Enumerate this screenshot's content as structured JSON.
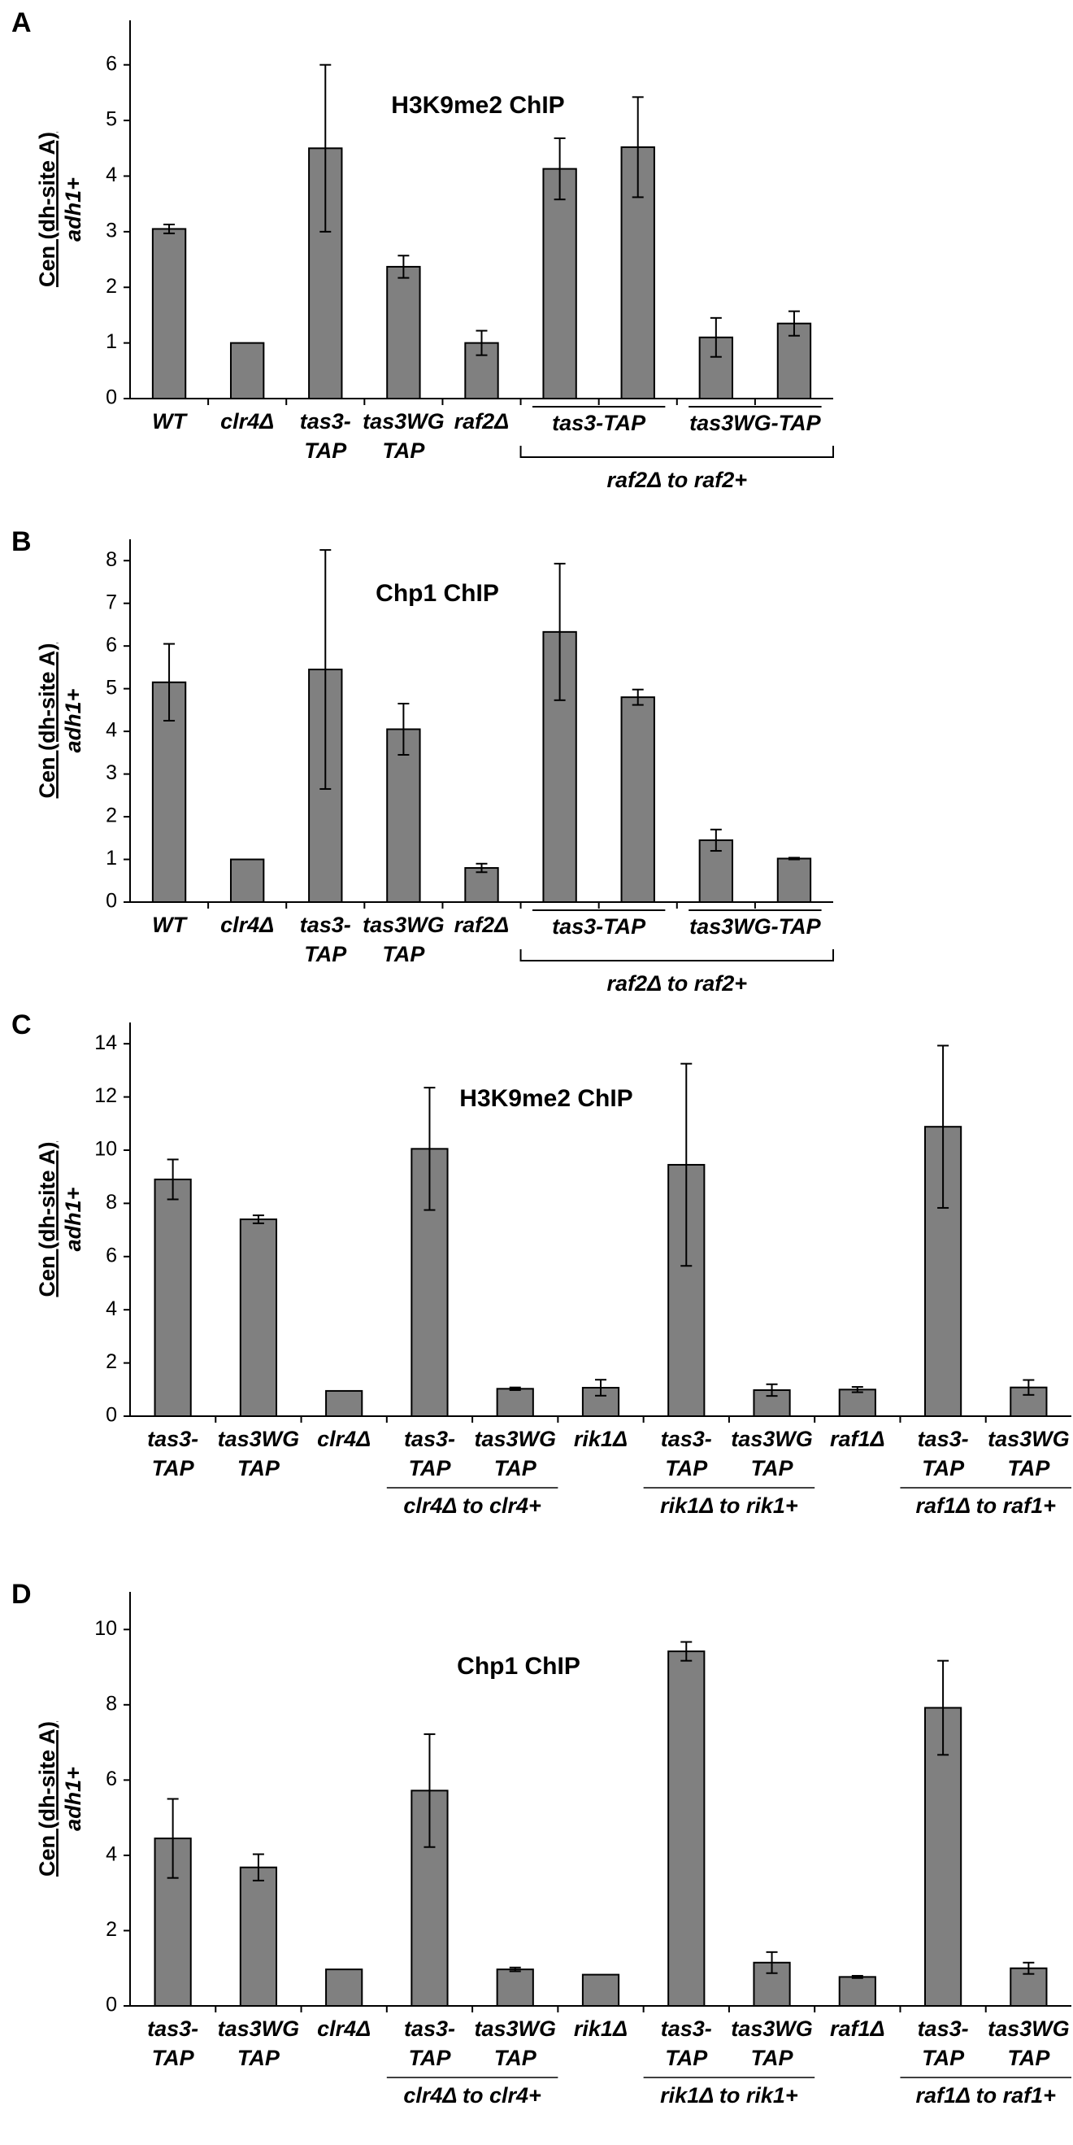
{
  "chart_data": [
    {
      "type": "bar",
      "panel": "A",
      "title": "H3K9me2 ChIP",
      "ylabel": "Cen (dh-site A)",
      "ylabel2": "adh1+",
      "color": "#808080",
      "categories": [
        "WT",
        "clr4Δ",
        "tas3- TAP",
        "tas3WG TAP",
        "raf2Δ",
        null,
        null,
        null,
        null
      ],
      "values": [
        3.05,
        1.0,
        4.5,
        2.37,
        1.0,
        4.13,
        4.52,
        1.1,
        1.35
      ],
      "errors": [
        0.08,
        null,
        1.5,
        0.2,
        0.22,
        0.55,
        0.9,
        0.35,
        0.22
      ],
      "ylim": [
        0,
        6.8
      ],
      "yticks": [
        0,
        1,
        2,
        3,
        4,
        5,
        6
      ],
      "groups": [
        {
          "label": "tas3-TAP",
          "from": 5,
          "to": 6
        },
        {
          "label": "tas3WG-TAP",
          "from": 7,
          "to": 8
        }
      ],
      "bracket": {
        "label": "raf2Δ to raf2+",
        "from": 5,
        "to": 8
      }
    },
    {
      "type": "bar",
      "panel": "B",
      "title": "Chp1 ChIP",
      "ylabel": "Cen (dh-site A)",
      "ylabel2": "adh1+",
      "color": "#808080",
      "categories": [
        "WT",
        "clr4Δ",
        "tas3- TAP",
        "tas3WG TAP",
        "raf2Δ",
        null,
        null,
        null,
        null
      ],
      "values": [
        5.15,
        1.0,
        5.45,
        4.05,
        0.8,
        6.33,
        4.8,
        1.45,
        1.02
      ],
      "errors": [
        0.9,
        null,
        2.8,
        0.6,
        0.1,
        1.6,
        0.18,
        0.25,
        0.02
      ],
      "ylim": [
        0,
        8.5
      ],
      "yticks": [
        0,
        1,
        2,
        3,
        4,
        5,
        6,
        7,
        8
      ],
      "groups": [
        {
          "label": "tas3-TAP",
          "from": 5,
          "to": 6
        },
        {
          "label": "tas3WG-TAP",
          "from": 7,
          "to": 8
        }
      ],
      "bracket": {
        "label": "raf2Δ to raf2+",
        "from": 5,
        "to": 8
      }
    },
    {
      "type": "bar",
      "panel": "C",
      "title": "H3K9me2 ChIP",
      "ylabel": "Cen (dh-site A)",
      "ylabel2": "adh1+",
      "color": "#808080",
      "categories": [
        "tas3- TAP",
        "tas3WG TAP",
        "clr4Δ",
        "tas3- TAP",
        "tas3WG TAP",
        "rik1Δ",
        "tas3- TAP",
        "tas3WG TAP",
        "raf1Δ",
        "tas3- TAP",
        "tas3WG TAP"
      ],
      "values": [
        8.9,
        7.4,
        0.95,
        10.05,
        1.03,
        1.07,
        9.45,
        0.98,
        1.0,
        10.88,
        1.08
      ],
      "errors": [
        0.75,
        0.15,
        null,
        2.3,
        0.05,
        0.3,
        3.8,
        0.22,
        0.1,
        3.05,
        0.28
      ],
      "ylim": [
        0,
        14.8
      ],
      "yticks": [
        0,
        2,
        4,
        6,
        8,
        10,
        12,
        14
      ],
      "groups": [
        {
          "label": "clr4Δ  to clr4+",
          "from": 3,
          "to": 4
        },
        {
          "label": "rik1Δ  to rik1+",
          "from": 6,
          "to": 7
        },
        {
          "label": "raf1Δ  to raf1+",
          "from": 9,
          "to": 10
        }
      ]
    },
    {
      "type": "bar",
      "panel": "D",
      "title": "Chp1 ChIP",
      "ylabel": "Cen (dh-site A)",
      "ylabel2": "adh1+",
      "color": "#808080",
      "categories": [
        "tas3- TAP",
        "tas3WG TAP",
        "clr4Δ",
        "tas3- TAP",
        "tas3WG TAP",
        "rik1Δ",
        "tas3- TAP",
        "tas3WG TAP",
        "raf1Δ",
        "tas3- TAP",
        "tas3WG TAP"
      ],
      "values": [
        4.45,
        3.68,
        0.97,
        5.72,
        0.97,
        0.83,
        9.42,
        1.15,
        0.77,
        7.92,
        1.0
      ],
      "errors": [
        1.05,
        0.35,
        null,
        1.5,
        0.05,
        null,
        0.25,
        0.28,
        0.03,
        1.25,
        0.15
      ],
      "ylim": [
        0,
        11
      ],
      "yticks": [
        0,
        2,
        4,
        6,
        8,
        10
      ],
      "groups": [
        {
          "label": "clr4Δ  to clr4+",
          "from": 3,
          "to": 4
        },
        {
          "label": "rik1Δ  to rik1+",
          "from": 6,
          "to": 7
        },
        {
          "label": "raf1Δ  to raf1+",
          "from": 9,
          "to": 10
        }
      ]
    }
  ]
}
